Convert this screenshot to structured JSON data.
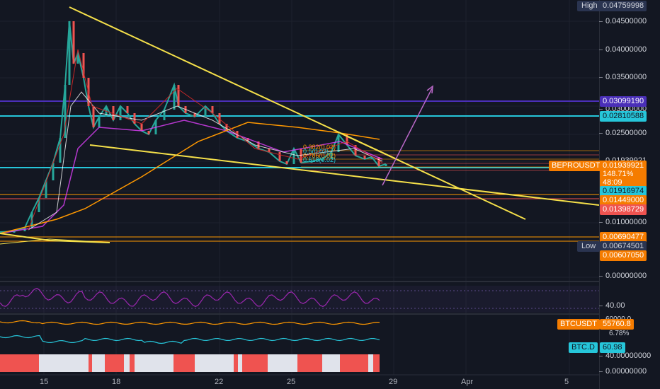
{
  "colors": {
    "background": "#131722",
    "trendline": "#f5e04a",
    "fib": "#5fb0d8",
    "cyan": "#26c6da",
    "purple_line": "#4a2fb8",
    "orange_line": "#ff9800",
    "red_line": "#ef5350",
    "rsi": "#9c27b0",
    "btcusdt": "#ff9800",
    "btcd": "#26c6da",
    "bar_red": "#ef5350",
    "bar_white": "#e0e3eb"
  },
  "price_ticks": [
    "0.04500000",
    "0.04000000",
    "0.03500000",
    "0.03000000",
    "0.02500000",
    "0.01939921",
    "0.01000000",
    "0.00000000",
    "40.00",
    "60000.0",
    "40.00000000",
    "0.00000000"
  ],
  "tags": {
    "high_label": "High",
    "high_value": "0.04759998",
    "line_purple": "0.03099190",
    "line_cyan": "0.02810588",
    "current_symbol": "BEPROUSDT",
    "current_value": "0.01939921",
    "current_pct": "148.71%",
    "current_time": "48:09",
    "cyan_low": "0.01916974",
    "orange1": "0.01449000",
    "red1": "0.01398729",
    "orange2": "0.00690477",
    "low_label": "Low",
    "low_value": "0.00674501",
    "orange3": "0.00607050"
  },
  "subcharts": {
    "rsi_value": "40.00",
    "btcusdt_label": "BTCUSDT",
    "btcusdt_value": "55760.8",
    "btcusdt_pct": "6.78%",
    "btcusdt_tick": "60000.0",
    "btcd_label": "BTC.D",
    "btcd_value": "60.98"
  },
  "fib_labels": [
    "0.382(0.02)",
    "0.5(0.02)",
    "0.786(0.02)",
    "0.618(0.02)"
  ],
  "x_ticks": [
    "15",
    "18",
    "22",
    "25",
    "29",
    "Apr",
    "5"
  ]
}
